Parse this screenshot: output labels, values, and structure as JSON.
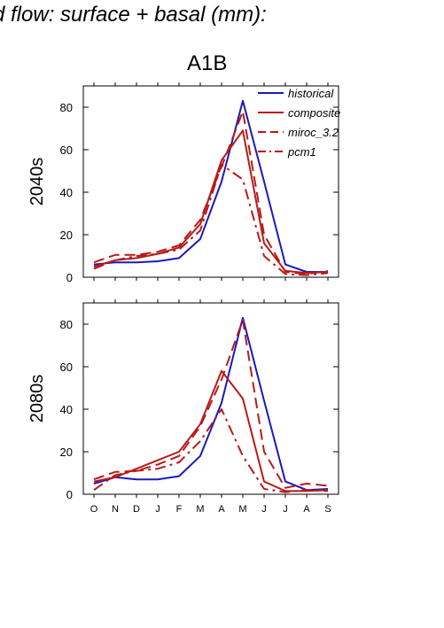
{
  "title": "d flow: surface + basal (mm):",
  "heading": "A1B",
  "colors": {
    "historical": "#1a1ab8",
    "scenario": "#b81a1a"
  },
  "chart_data": [
    {
      "type": "line",
      "row_label": "2040s",
      "categories": [
        "O",
        "N",
        "D",
        "J",
        "F",
        "M",
        "A",
        "M",
        "J",
        "J",
        "A",
        "S"
      ],
      "ylim": [
        0,
        90
      ],
      "yticks": [
        0,
        20,
        40,
        60,
        80
      ],
      "legend": {
        "position": "top-right"
      },
      "series": [
        {
          "name": "historical",
          "style": "solid",
          "color": "#1a1ab8",
          "values": [
            6,
            7,
            7,
            7.5,
            9,
            18,
            45,
            83,
            45,
            6,
            2.5,
            2.5
          ]
        },
        {
          "name": "composite",
          "style": "solid",
          "color": "#b81a1a",
          "values": [
            5,
            8,
            9,
            11,
            14,
            25,
            55,
            69,
            16,
            3,
            2,
            2.5
          ]
        },
        {
          "name": "miroc_3.2",
          "style": "dash",
          "color": "#b81a1a",
          "values": [
            7,
            10.5,
            10.5,
            12,
            15,
            27,
            52,
            78,
            20,
            2.5,
            1.5,
            3
          ]
        },
        {
          "name": "pcm1",
          "style": "dashdot",
          "color": "#b81a1a",
          "values": [
            4,
            8,
            10,
            11,
            13,
            22,
            53,
            46,
            10,
            1.5,
            1,
            2
          ]
        }
      ]
    },
    {
      "type": "line",
      "row_label": "2080s",
      "categories": [
        "O",
        "N",
        "D",
        "J",
        "F",
        "M",
        "A",
        "M",
        "J",
        "J",
        "A",
        "S"
      ],
      "ylim": [
        0,
        90
      ],
      "yticks": [
        0,
        20,
        40,
        60,
        80
      ],
      "series": [
        {
          "name": "historical",
          "style": "solid",
          "color": "#1a1ab8",
          "values": [
            5,
            8,
            7,
            7,
            8.5,
            18,
            43,
            83,
            44,
            6,
            2,
            2.5
          ]
        },
        {
          "name": "composite",
          "style": "solid",
          "color": "#b81a1a",
          "values": [
            6,
            8,
            12,
            16,
            20,
            33,
            58,
            45,
            6,
            1.5,
            1.5,
            2
          ]
        },
        {
          "name": "miroc_3.2",
          "style": "dash",
          "color": "#b81a1a",
          "values": [
            7,
            10.5,
            11,
            14,
            18,
            32,
            54,
            82,
            20,
            3,
            5,
            4
          ]
        },
        {
          "name": "pcm1",
          "style": "dashdot",
          "color": "#b81a1a",
          "values": [
            2,
            9,
            11,
            12,
            15,
            25,
            40,
            18,
            2.5,
            1,
            2,
            1.5
          ]
        }
      ]
    }
  ]
}
